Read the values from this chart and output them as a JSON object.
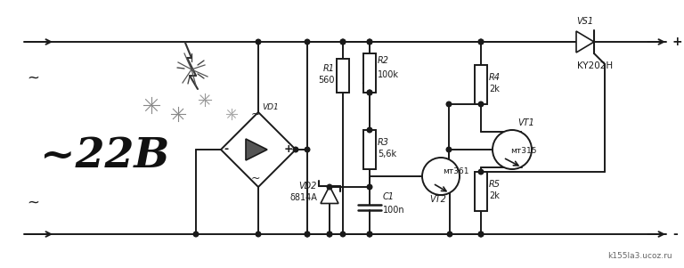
{
  "bg_color": "#ffffff",
  "line_color": "#1a1a1a",
  "lw": 1.4,
  "watermark": "k155la3.ucoz.ru",
  "voltage_label": "~22B",
  "R1_label": "R1",
  "R1_val": "560",
  "R2_label": "R2",
  "R2_val": "100k",
  "R3_label": "R3",
  "R3_val": "5,6k",
  "R4_label": "R4",
  "R4_val": "2k",
  "R5_label": "R5",
  "R5_val": "2k",
  "C1_label": "C1",
  "C1_val": "100n",
  "VD1_label": "VD1",
  "VD2_label": "VD2",
  "VD2_val": "δ814A",
  "VS1_label": "VS1",
  "VS1_val": "KY202H",
  "VT1_label": "VT1",
  "VT1_val": "мт315",
  "VT2_label": "VT2",
  "VT2_val": "мт361",
  "plus_label": "+",
  "minus_label": "-",
  "tilde_top": "~",
  "tilde_bot": "~"
}
